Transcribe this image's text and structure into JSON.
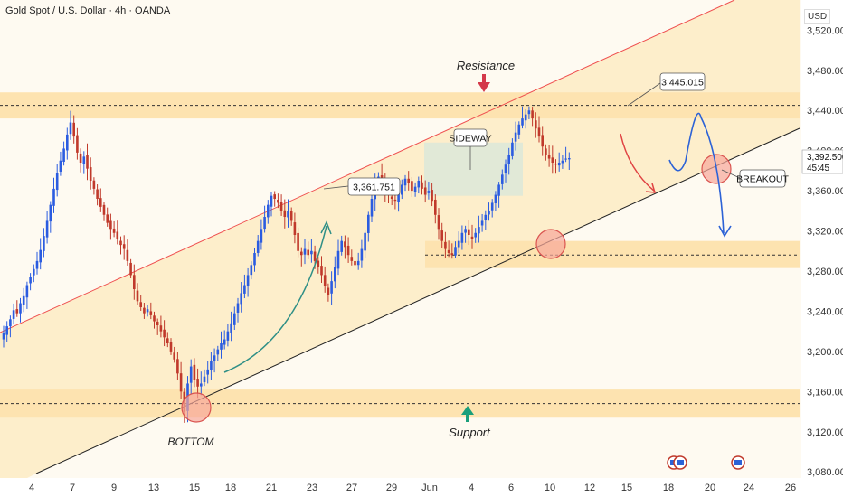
{
  "header": {
    "title": "Gold Spot / U.S. Dollar · 4h · OANDA"
  },
  "currency_label": "USD",
  "countdown": "45:45",
  "colors": {
    "bg": "#fefaf1",
    "zone": "#fde3b0",
    "channel_fill": "#fdecc7",
    "bull": "#2b5ce0",
    "bear": "#c0392b",
    "green_arrow": "#2f8f86",
    "blue_path": "#2c62d6",
    "circle_fill": "#f6a79a",
    "circle_stroke": "#d9534f",
    "sideway_box": "#dfe8d7",
    "price_tag": "#ffffff"
  },
  "annotations": {
    "resistance": "Resistance",
    "support": "Support",
    "bottom": "BOTTOM",
    "sideway": "SIDEWAY",
    "breakout": "BREAKOUT",
    "label_high1": "3,361.751",
    "label_high2": "3,445.015",
    "current_price": "3,392.500"
  },
  "chart_data": {
    "type": "candlestick",
    "title": "Gold Spot / U.S. Dollar · 4h · OANDA",
    "ylabel": "USD",
    "ylim": [
      3055,
      3550
    ],
    "y_ticks": [
      3080,
      3120,
      3160,
      3200,
      3240,
      3280,
      3320,
      3360,
      3400,
      3440,
      3480,
      3520
    ],
    "y_tick_labels": [
      "3,080.000",
      "3,120.000",
      "3,160.000",
      "3,200.000",
      "3,240.000",
      "3,280.000",
      "3,320.000",
      "3,360.000",
      "3,400.000",
      "3,440.000",
      "3,480.000",
      "3,520.000"
    ],
    "x_ticks": [
      "4",
      "7",
      "9",
      "13",
      "15",
      "18",
      "21",
      "23",
      "27",
      "29",
      "Jun",
      "4",
      "6",
      "10",
      "12",
      "15",
      "18",
      "20",
      "24",
      "26"
    ],
    "bar_count": 200,
    "current_price": 3392.5,
    "closes": [
      3218,
      3225,
      3232,
      3241,
      3238,
      3248,
      3255,
      3266,
      3274,
      3282,
      3290,
      3301,
      3315,
      3330,
      3346,
      3362,
      3378,
      3390,
      3402,
      3416,
      3428,
      3414,
      3398,
      3388,
      3394,
      3382,
      3370,
      3362,
      3352,
      3344,
      3336,
      3328,
      3322,
      3318,
      3312,
      3306,
      3302,
      3290,
      3276,
      3262,
      3250,
      3244,
      3238,
      3242,
      3236,
      3230,
      3226,
      3220,
      3214,
      3208,
      3200,
      3192,
      3178,
      3160,
      3140,
      3168,
      3185,
      3172,
      3165,
      3168,
      3175,
      3182,
      3190,
      3196,
      3202,
      3208,
      3212,
      3220,
      3228,
      3238,
      3248,
      3258,
      3266,
      3276,
      3286,
      3298,
      3310,
      3322,
      3334,
      3346,
      3355,
      3352,
      3348,
      3340,
      3334,
      3340,
      3330,
      3316,
      3300,
      3296,
      3302,
      3296,
      3300,
      3290,
      3284,
      3276,
      3265,
      3256,
      3270,
      3284,
      3300,
      3310,
      3304,
      3296,
      3290,
      3286,
      3290,
      3302,
      3318,
      3336,
      3352,
      3368,
      3374,
      3368,
      3360,
      3356,
      3352,
      3350,
      3358,
      3366,
      3372,
      3368,
      3360,
      3364,
      3370,
      3362,
      3356,
      3360,
      3350,
      3336,
      3322,
      3310,
      3302,
      3298,
      3296,
      3304,
      3310,
      3318,
      3322,
      3316,
      3312,
      3318,
      3324,
      3330,
      3336,
      3340,
      3348,
      3356,
      3366,
      3376,
      3386,
      3396,
      3408,
      3418,
      3426,
      3432,
      3436,
      3440,
      3432,
      3422,
      3414,
      3404,
      3396,
      3392,
      3388,
      3386,
      3388,
      3390,
      3392,
      3392.5
    ]
  }
}
